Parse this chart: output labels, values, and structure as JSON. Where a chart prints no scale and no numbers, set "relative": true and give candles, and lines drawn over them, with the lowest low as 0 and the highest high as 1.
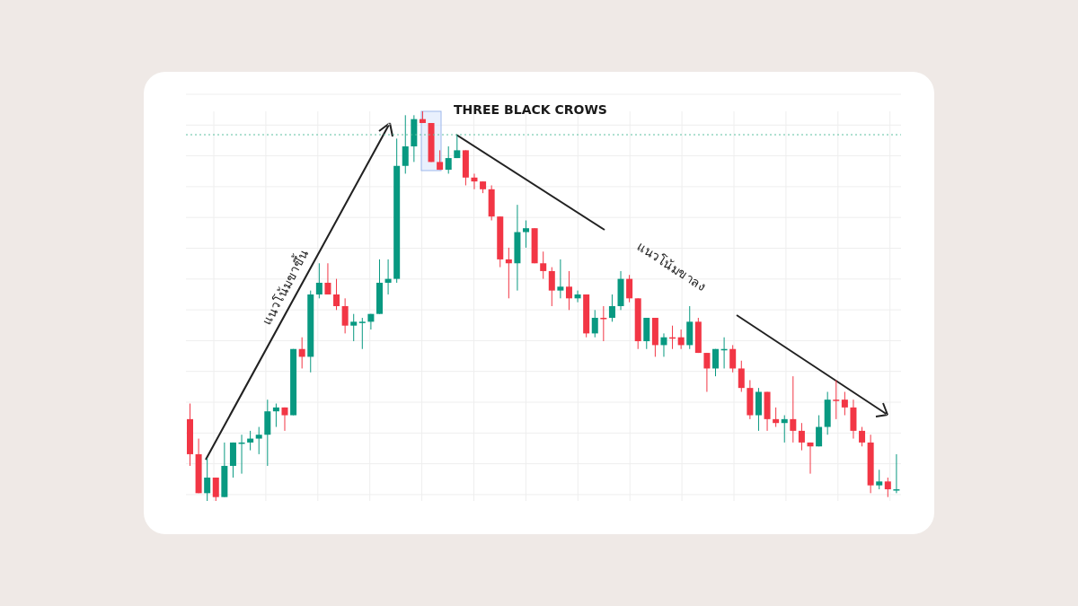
{
  "chart_data": {
    "type": "candlestick",
    "relative": true,
    "grid": true,
    "categories": [
      null,
      null,
      null,
      null,
      null,
      null,
      null,
      null,
      null,
      null,
      null,
      null,
      null,
      null,
      null,
      null,
      null,
      null,
      null,
      null,
      null,
      null,
      null,
      null,
      null,
      null,
      null,
      null,
      null,
      null,
      null,
      null,
      null,
      null,
      null,
      null,
      null,
      null,
      null,
      null,
      null,
      null,
      null,
      null,
      null,
      null,
      null,
      null,
      null,
      null,
      null,
      null,
      null,
      null,
      null,
      null,
      null,
      null,
      null,
      null,
      null,
      null,
      null,
      null,
      null,
      null,
      null,
      null,
      null,
      null,
      null,
      null,
      null,
      null,
      null,
      null,
      null,
      null,
      null,
      null,
      null,
      null,
      null
    ],
    "ohlc": [
      [
        0.21,
        0.25,
        0.09,
        0.12
      ],
      [
        0.12,
        0.16,
        0.02,
        0.02
      ],
      [
        0.02,
        0.11,
        0,
        0.06
      ],
      [
        0.06,
        0.06,
        0,
        0.01
      ],
      [
        0.01,
        0.15,
        0.01,
        0.09
      ],
      [
        0.09,
        0.15,
        0.06,
        0.15
      ],
      [
        0.15,
        0.17,
        0.07,
        0.15
      ],
      [
        0.15,
        0.18,
        0.13,
        0.16
      ],
      [
        0.16,
        0.19,
        0.12,
        0.17
      ],
      [
        0.17,
        0.26,
        0.09,
        0.23
      ],
      [
        0.23,
        0.25,
        0.19,
        0.24
      ],
      [
        0.24,
        0.24,
        0.18,
        0.22
      ],
      [
        0.22,
        0.39,
        0.22,
        0.39
      ],
      [
        0.39,
        0.42,
        0.34,
        0.37
      ],
      [
        0.37,
        0.54,
        0.33,
        0.53
      ],
      [
        0.53,
        0.61,
        0.52,
        0.56
      ],
      [
        0.56,
        0.61,
        0.53,
        0.53
      ],
      [
        0.53,
        0.57,
        0.49,
        0.5
      ],
      [
        0.5,
        0.52,
        0.43,
        0.45
      ],
      [
        0.45,
        0.48,
        0.41,
        0.46
      ],
      [
        0.46,
        0.47,
        0.39,
        0.46
      ],
      [
        0.46,
        0.48,
        0.44,
        0.48
      ],
      [
        0.48,
        0.62,
        0.48,
        0.56
      ],
      [
        0.56,
        0.62,
        0.53,
        0.57
      ],
      [
        0.57,
        0.93,
        0.56,
        0.86
      ],
      [
        0.86,
        0.99,
        0.84,
        0.91
      ],
      [
        0.91,
        0.99,
        0.87,
        0.98
      ],
      [
        0.98,
        1,
        0.97,
        0.97
      ],
      [
        0.97,
        0.97,
        0.87,
        0.87
      ],
      [
        0.87,
        0.9,
        0.85,
        0.85
      ],
      [
        0.85,
        0.91,
        0.84,
        0.88
      ],
      [
        0.88,
        0.94,
        0.88,
        0.9
      ],
      [
        0.9,
        0.9,
        0.81,
        0.83
      ],
      [
        0.83,
        0.84,
        0.8,
        0.82
      ],
      [
        0.82,
        0.82,
        0.79,
        0.8
      ],
      [
        0.8,
        0.81,
        0.72,
        0.73
      ],
      [
        0.73,
        0.73,
        0.6,
        0.62
      ],
      [
        0.62,
        0.65,
        0.52,
        0.61
      ],
      [
        0.61,
        0.76,
        0.54,
        0.69
      ],
      [
        0.69,
        0.72,
        0.65,
        0.7
      ],
      [
        0.7,
        0.7,
        0.61,
        0.61
      ],
      [
        0.61,
        0.64,
        0.57,
        0.59
      ],
      [
        0.59,
        0.6,
        0.5,
        0.54
      ],
      [
        0.54,
        0.62,
        0.52,
        0.55
      ],
      [
        0.55,
        0.59,
        0.49,
        0.52
      ],
      [
        0.52,
        0.54,
        0.51,
        0.53
      ],
      [
        0.53,
        0.53,
        0.42,
        0.43
      ],
      [
        0.43,
        0.49,
        0.42,
        0.47
      ],
      [
        0.47,
        0.5,
        0.41,
        0.47
      ],
      [
        0.47,
        0.53,
        0.46,
        0.5
      ],
      [
        0.5,
        0.59,
        0.49,
        0.57
      ],
      [
        0.57,
        0.58,
        0.51,
        0.52
      ],
      [
        0.52,
        0.52,
        0.39,
        0.41
      ],
      [
        0.41,
        0.47,
        0.39,
        0.47
      ],
      [
        0.47,
        0.47,
        0.37,
        0.4
      ],
      [
        0.4,
        0.43,
        0.37,
        0.42
      ],
      [
        0.42,
        0.45,
        0.39,
        0.42
      ],
      [
        0.42,
        0.44,
        0.39,
        0.4
      ],
      [
        0.4,
        0.5,
        0.39,
        0.46
      ],
      [
        0.46,
        0.47,
        0.38,
        0.38
      ],
      [
        0.38,
        0.38,
        0.28,
        0.34
      ],
      [
        0.34,
        0.39,
        0.32,
        0.39
      ],
      [
        0.39,
        0.42,
        0.34,
        0.39
      ],
      [
        0.39,
        0.4,
        0.33,
        0.34
      ],
      [
        0.34,
        0.36,
        0.28,
        0.29
      ],
      [
        0.29,
        0.31,
        0.21,
        0.22
      ],
      [
        0.22,
        0.29,
        0.18,
        0.28
      ],
      [
        0.28,
        0.28,
        0.18,
        0.21
      ],
      [
        0.21,
        0.24,
        0.19,
        0.2
      ],
      [
        0.2,
        0.22,
        0.15,
        0.21
      ],
      [
        0.21,
        0.32,
        0.15,
        0.18
      ],
      [
        0.18,
        0.2,
        0.13,
        0.15
      ],
      [
        0.15,
        0.15,
        0.07,
        0.14
      ],
      [
        0.14,
        0.22,
        0.14,
        0.19
      ],
      [
        0.19,
        0.28,
        0.17,
        0.26
      ],
      [
        0.26,
        0.31,
        0.21,
        0.26
      ],
      [
        0.26,
        0.28,
        0.22,
        0.24
      ],
      [
        0.24,
        0.26,
        0.16,
        0.18
      ],
      [
        0.18,
        0.19,
        0.14,
        0.15
      ],
      [
        0.15,
        0.17,
        0.02,
        0.04
      ],
      [
        0.04,
        0.08,
        0.03,
        0.05
      ],
      [
        0.05,
        0.06,
        0.01,
        0.03
      ],
      [
        0.03,
        0.12,
        0.02,
        0.03
      ]
    ],
    "colors": [
      "#f23645",
      "#f23645",
      "#089981",
      "#f23645",
      "#089981",
      "#089981",
      "#089981",
      "#089981",
      "#089981",
      "#089981",
      "#089981",
      "#f23645",
      "#089981",
      "#f23645",
      "#089981",
      "#089981",
      "#f23645",
      "#f23645",
      "#f23645",
      "#089981",
      "#089981",
      "#089981",
      "#089981",
      "#089981",
      "#089981",
      "#089981",
      "#089981",
      "#f23645",
      "#f23645",
      "#f23645",
      "#089981",
      "#089981",
      "#f23645",
      "#f23645",
      "#f23645",
      "#f23645",
      "#f23645",
      "#f23645",
      "#089981",
      "#089981",
      "#f23645",
      "#f23645",
      "#f23645",
      "#089981",
      "#f23645",
      "#089981",
      "#f23645",
      "#089981",
      "#f23645",
      "#089981",
      "#089981",
      "#f23645",
      "#f23645",
      "#089981",
      "#f23645",
      "#089981",
      "#f23645",
      "#f23645",
      "#089981",
      "#f23645",
      "#f23645",
      "#089981",
      "#089981",
      "#f23645",
      "#f23645",
      "#f23645",
      "#089981",
      "#f23645",
      "#f23645",
      "#089981",
      "#f23645",
      "#f23645",
      "#f23645",
      "#089981",
      "#089981",
      "#f23645",
      "#f23645",
      "#f23645",
      "#f23645",
      "#f23645",
      "#089981",
      "#f23645",
      "#089981"
    ],
    "ref_lines": [
      {
        "axis": "y",
        "value": 0.94,
        "color": "#5cc0a0",
        "line_style": "dotted"
      }
    ],
    "annotations": [
      "THREE BLACK CROWS",
      "แนวโน้มขาขึ้น",
      "แนวโน้มขาลง"
    ]
  }
}
